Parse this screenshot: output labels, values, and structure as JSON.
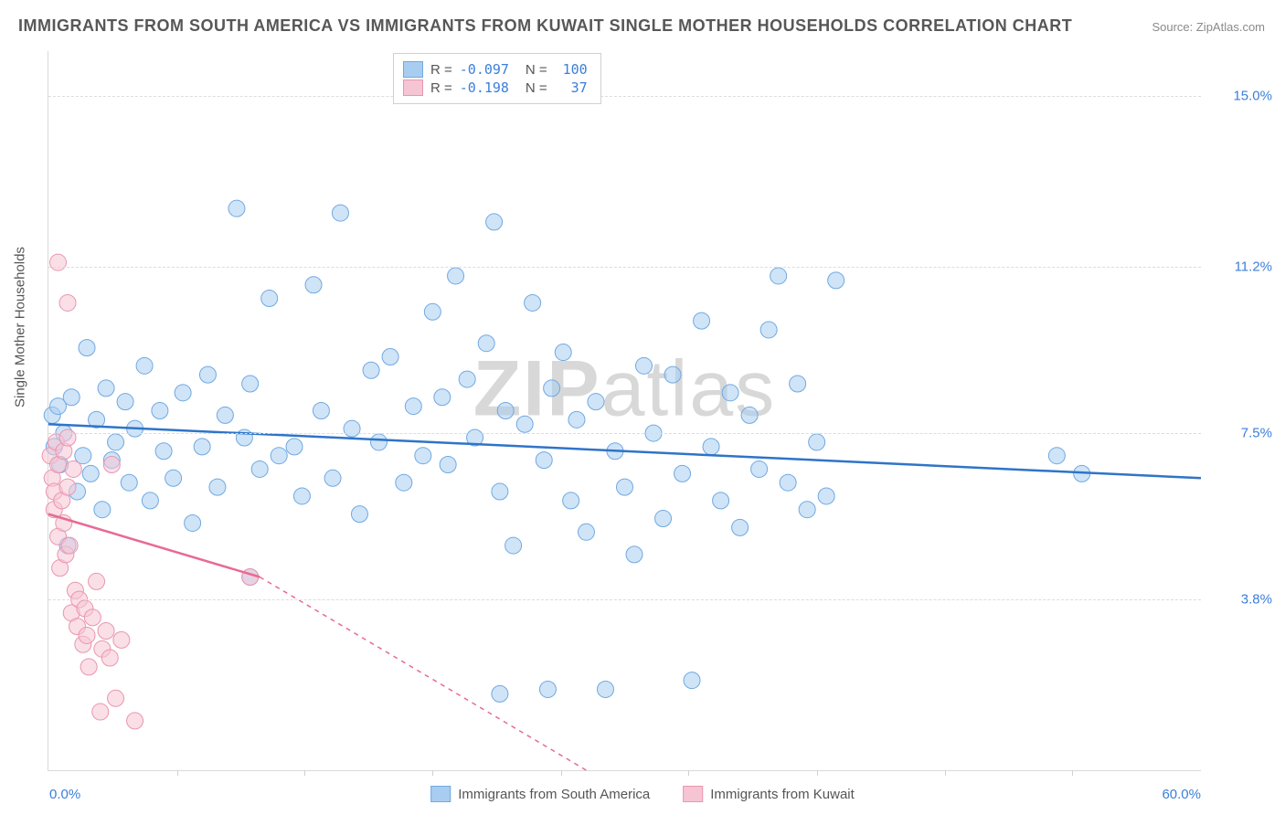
{
  "title": "IMMIGRANTS FROM SOUTH AMERICA VS IMMIGRANTS FROM KUWAIT SINGLE MOTHER HOUSEHOLDS CORRELATION CHART",
  "source": "Source: ZipAtlas.com",
  "watermark_bold": "ZIP",
  "watermark_light": "atlas",
  "yaxis_title": "Single Mother Households",
  "x_min_label": "0.0%",
  "x_max_label": "60.0%",
  "x_range": [
    0,
    60
  ],
  "y_range": [
    0,
    16
  ],
  "y_ticks": [
    {
      "v": 3.8,
      "label": "3.8%"
    },
    {
      "v": 7.5,
      "label": "7.5%"
    },
    {
      "v": 11.2,
      "label": "11.2%"
    },
    {
      "v": 15.0,
      "label": "15.0%"
    }
  ],
  "x_ticks": [
    6.7,
    13.3,
    20.0,
    26.7,
    33.3,
    40.0,
    46.7,
    53.3
  ],
  "series": [
    {
      "name": "Immigrants from South America",
      "color_fill": "#a9cdf0",
      "color_stroke": "#6fa9e2",
      "line_color": "#2f74c8",
      "R": "-0.097",
      "N": "100",
      "trend": {
        "x1": 0,
        "y1": 7.7,
        "x2": 60,
        "y2": 6.5
      },
      "points": [
        [
          0.2,
          7.9
        ],
        [
          0.3,
          7.2
        ],
        [
          0.5,
          8.1
        ],
        [
          0.6,
          6.8
        ],
        [
          0.8,
          7.5
        ],
        [
          1.0,
          5.0
        ],
        [
          1.2,
          8.3
        ],
        [
          1.5,
          6.2
        ],
        [
          1.8,
          7.0
        ],
        [
          2.0,
          9.4
        ],
        [
          2.2,
          6.6
        ],
        [
          2.5,
          7.8
        ],
        [
          2.8,
          5.8
        ],
        [
          3.0,
          8.5
        ],
        [
          3.3,
          6.9
        ],
        [
          3.5,
          7.3
        ],
        [
          4.0,
          8.2
        ],
        [
          4.2,
          6.4
        ],
        [
          4.5,
          7.6
        ],
        [
          5.0,
          9.0
        ],
        [
          5.3,
          6.0
        ],
        [
          5.8,
          8.0
        ],
        [
          6.0,
          7.1
        ],
        [
          6.5,
          6.5
        ],
        [
          7.0,
          8.4
        ],
        [
          7.5,
          5.5
        ],
        [
          8.0,
          7.2
        ],
        [
          8.3,
          8.8
        ],
        [
          8.8,
          6.3
        ],
        [
          9.2,
          7.9
        ],
        [
          9.8,
          12.5
        ],
        [
          10.2,
          7.4
        ],
        [
          10.5,
          8.6
        ],
        [
          11.0,
          6.7
        ],
        [
          11.5,
          10.5
        ],
        [
          12.0,
          7.0
        ],
        [
          12.8,
          7.2
        ],
        [
          13.2,
          6.1
        ],
        [
          13.8,
          10.8
        ],
        [
          14.2,
          8.0
        ],
        [
          14.8,
          6.5
        ],
        [
          15.2,
          12.4
        ],
        [
          15.8,
          7.6
        ],
        [
          16.2,
          5.7
        ],
        [
          16.8,
          8.9
        ],
        [
          17.2,
          7.3
        ],
        [
          17.8,
          9.2
        ],
        [
          18.5,
          6.4
        ],
        [
          19.0,
          8.1
        ],
        [
          19.5,
          7.0
        ],
        [
          20.0,
          10.2
        ],
        [
          20.5,
          8.3
        ],
        [
          20.8,
          6.8
        ],
        [
          21.2,
          11.0
        ],
        [
          21.8,
          8.7
        ],
        [
          22.2,
          7.4
        ],
        [
          22.8,
          9.5
        ],
        [
          23.2,
          12.2
        ],
        [
          23.5,
          6.2
        ],
        [
          23.8,
          8.0
        ],
        [
          24.2,
          5.0
        ],
        [
          24.8,
          7.7
        ],
        [
          25.2,
          10.4
        ],
        [
          25.8,
          6.9
        ],
        [
          26.2,
          8.5
        ],
        [
          26.8,
          9.3
        ],
        [
          27.2,
          6.0
        ],
        [
          27.5,
          7.8
        ],
        [
          28.0,
          5.3
        ],
        [
          28.5,
          8.2
        ],
        [
          29.0,
          1.8
        ],
        [
          29.5,
          7.1
        ],
        [
          30.0,
          6.3
        ],
        [
          30.5,
          4.8
        ],
        [
          31.0,
          9.0
        ],
        [
          31.5,
          7.5
        ],
        [
          32.0,
          5.6
        ],
        [
          32.5,
          8.8
        ],
        [
          33.0,
          6.6
        ],
        [
          33.5,
          2.0
        ],
        [
          34.0,
          10.0
        ],
        [
          34.5,
          7.2
        ],
        [
          35.0,
          6.0
        ],
        [
          35.5,
          8.4
        ],
        [
          36.0,
          5.4
        ],
        [
          36.5,
          7.9
        ],
        [
          37.0,
          6.7
        ],
        [
          37.5,
          9.8
        ],
        [
          38.0,
          11.0
        ],
        [
          38.5,
          6.4
        ],
        [
          39.0,
          8.6
        ],
        [
          39.5,
          5.8
        ],
        [
          40.0,
          7.3
        ],
        [
          40.5,
          6.1
        ],
        [
          41.0,
          10.9
        ],
        [
          52.5,
          7.0
        ],
        [
          53.8,
          6.6
        ],
        [
          23.5,
          1.7
        ],
        [
          26.0,
          1.8
        ],
        [
          10.5,
          4.3
        ]
      ]
    },
    {
      "name": "Immigrants from Kuwait",
      "color_fill": "#f5c5d3",
      "color_stroke": "#ea95b0",
      "line_color": "#e86a93",
      "R": "-0.198",
      "N": "37",
      "trend": {
        "x1": 0,
        "y1": 5.7,
        "x2": 11,
        "y2": 4.3
      },
      "trend_dash": {
        "x1": 11,
        "y1": 4.3,
        "x2": 28,
        "y2": 0
      },
      "points": [
        [
          0.1,
          7.0
        ],
        [
          0.2,
          6.5
        ],
        [
          0.3,
          5.8
        ],
        [
          0.3,
          6.2
        ],
        [
          0.4,
          7.3
        ],
        [
          0.5,
          5.2
        ],
        [
          0.5,
          6.8
        ],
        [
          0.6,
          4.5
        ],
        [
          0.7,
          6.0
        ],
        [
          0.8,
          5.5
        ],
        [
          0.8,
          7.1
        ],
        [
          0.9,
          4.8
        ],
        [
          1.0,
          6.3
        ],
        [
          1.0,
          7.4
        ],
        [
          1.1,
          5.0
        ],
        [
          1.2,
          3.5
        ],
        [
          1.3,
          6.7
        ],
        [
          1.4,
          4.0
        ],
        [
          1.5,
          3.2
        ],
        [
          1.6,
          3.8
        ],
        [
          1.8,
          2.8
        ],
        [
          1.9,
          3.6
        ],
        [
          2.0,
          3.0
        ],
        [
          2.1,
          2.3
        ],
        [
          2.3,
          3.4
        ],
        [
          2.5,
          4.2
        ],
        [
          2.7,
          1.3
        ],
        [
          2.8,
          2.7
        ],
        [
          3.0,
          3.1
        ],
        [
          3.2,
          2.5
        ],
        [
          3.5,
          1.6
        ],
        [
          3.8,
          2.9
        ],
        [
          0.5,
          11.3
        ],
        [
          1.0,
          10.4
        ],
        [
          3.3,
          6.8
        ],
        [
          10.5,
          4.3
        ],
        [
          4.5,
          1.1
        ]
      ]
    }
  ],
  "marker_radius": 9,
  "marker_opacity": 0.55,
  "line_width": 2.5,
  "background_color": "#ffffff"
}
